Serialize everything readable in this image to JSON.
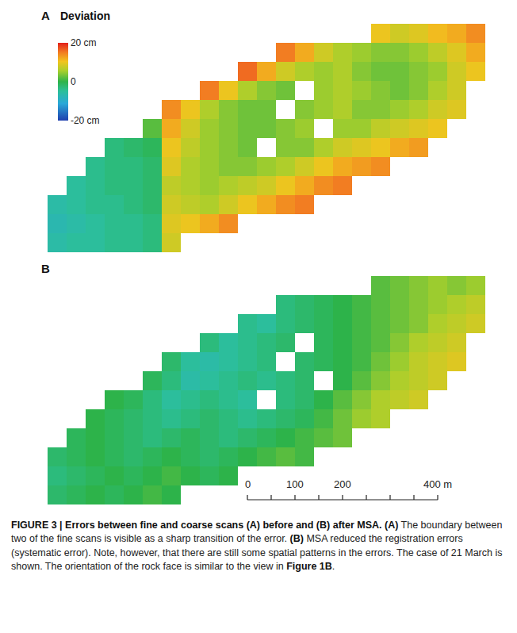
{
  "chart_data": [
    {
      "type": "heatmap",
      "panel": "A",
      "tick_labels": false,
      "x": [
        20,
        60,
        100,
        140,
        180,
        220,
        260,
        300,
        340,
        380,
        420,
        460,
        500,
        540,
        580,
        620,
        660,
        700,
        740,
        780,
        820,
        860,
        900
      ],
      "y": [
        20,
        60,
        100,
        140,
        180,
        220,
        260,
        300,
        340,
        380,
        420,
        460
      ],
      "xlim": [
        0,
        920
      ],
      "ylim": [
        0,
        480
      ],
      "colorbar": {
        "title": "Deviation",
        "range": [
          -20,
          20
        ],
        "ticks": [
          {
            "value": -20,
            "label": "-20 cm"
          },
          0,
          {
            "value": 20,
            "label": "20 cm"
          }
        ]
      },
      "values": [
        [
          -6,
          -5,
          -5,
          -4,
          -4,
          -3,
          8,
          null,
          null,
          null,
          null,
          null,
          null,
          null,
          null,
          null,
          null,
          null,
          null,
          null,
          null,
          null,
          null
        ],
        [
          -7,
          -6,
          -5,
          -4,
          -4,
          -3,
          9,
          10,
          12,
          14,
          null,
          null,
          null,
          null,
          null,
          null,
          null,
          null,
          null,
          null,
          null,
          null,
          null
        ],
        [
          -6,
          -5,
          -4,
          -4,
          -3,
          -2,
          8,
          7,
          6,
          8,
          10,
          12,
          14,
          15,
          null,
          null,
          null,
          null,
          null,
          null,
          null,
          null,
          null
        ],
        [
          null,
          -5,
          -4,
          -3,
          -3,
          -2,
          7,
          6,
          5,
          6,
          7,
          8,
          10,
          12,
          14,
          15,
          null,
          null,
          null,
          null,
          null,
          null,
          null
        ],
        [
          null,
          null,
          -4,
          -3,
          -3,
          -2,
          9,
          6,
          5,
          4,
          4,
          5,
          6,
          8,
          10,
          12,
          13,
          14,
          null,
          null,
          null,
          null,
          null
        ],
        [
          null,
          null,
          null,
          -3,
          -2,
          -1,
          10,
          7,
          5,
          4,
          3,
          null,
          4,
          4,
          6,
          8,
          9,
          10,
          12,
          13,
          null,
          null,
          null
        ],
        [
          null,
          null,
          null,
          null,
          null,
          2,
          12,
          8,
          5,
          4,
          3,
          3,
          4,
          5,
          null,
          5,
          5,
          7,
          8,
          9,
          10,
          null,
          null
        ],
        [
          null,
          null,
          null,
          null,
          null,
          null,
          14,
          10,
          6,
          4,
          3,
          3,
          null,
          4,
          5,
          6,
          4,
          4,
          5,
          6,
          8,
          9,
          null
        ],
        [
          null,
          null,
          null,
          null,
          null,
          null,
          null,
          null,
          15,
          10,
          6,
          4,
          3,
          null,
          5,
          6,
          5,
          4,
          3,
          4,
          6,
          8,
          null
        ],
        [
          null,
          null,
          null,
          null,
          null,
          null,
          null,
          null,
          null,
          null,
          16,
          12,
          8,
          6,
          5,
          6,
          4,
          3,
          3,
          4,
          5,
          8,
          10
        ],
        [
          null,
          null,
          null,
          null,
          null,
          null,
          null,
          null,
          null,
          null,
          null,
          null,
          15,
          12,
          8,
          6,
          5,
          4,
          4,
          5,
          7,
          9,
          12
        ],
        [
          null,
          null,
          null,
          null,
          null,
          null,
          null,
          null,
          null,
          null,
          null,
          null,
          null,
          null,
          null,
          null,
          null,
          10,
          8,
          9,
          11,
          12,
          14
        ]
      ]
    },
    {
      "type": "heatmap",
      "panel": "B",
      "tick_labels": false,
      "x": [
        20,
        60,
        100,
        140,
        180,
        220,
        260,
        300,
        340,
        380,
        420,
        460,
        500,
        540,
        580,
        620,
        660,
        700,
        740,
        780,
        820,
        860,
        900
      ],
      "y": [
        20,
        60,
        100,
        140,
        180,
        220,
        260,
        300,
        340,
        380,
        420,
        460
      ],
      "xlim": [
        0,
        920
      ],
      "ylim": [
        0,
        480
      ],
      "values": [
        [
          -2,
          -1,
          0,
          -1,
          0,
          1,
          0,
          null,
          null,
          null,
          null,
          null,
          null,
          null,
          null,
          null,
          null,
          null,
          null,
          null,
          null,
          null,
          null
        ],
        [
          -3,
          -2,
          -1,
          0,
          -1,
          0,
          1,
          0,
          -1,
          0,
          null,
          null,
          null,
          null,
          null,
          null,
          null,
          null,
          null,
          null,
          null,
          null,
          null
        ],
        [
          -2,
          -1,
          0,
          -1,
          -2,
          -1,
          0,
          -1,
          -2,
          -1,
          0,
          1,
          2,
          1,
          null,
          null,
          null,
          null,
          null,
          null,
          null,
          null,
          null
        ],
        [
          null,
          -1,
          0,
          -1,
          -2,
          -3,
          -2,
          -1,
          -2,
          -3,
          -2,
          -1,
          0,
          1,
          2,
          3,
          null,
          null,
          null,
          null,
          null,
          null,
          null
        ],
        [
          null,
          null,
          0,
          -1,
          -2,
          -3,
          -4,
          -3,
          -2,
          -3,
          -4,
          -3,
          -2,
          -1,
          1,
          3,
          5,
          6,
          null,
          null,
          null,
          null,
          null
        ],
        [
          null,
          null,
          null,
          0,
          -1,
          -3,
          -5,
          -4,
          -3,
          -4,
          -5,
          null,
          -3,
          -2,
          0,
          2,
          4,
          6,
          7,
          8,
          null,
          null,
          null
        ],
        [
          null,
          null,
          null,
          null,
          null,
          -1,
          -3,
          -6,
          -5,
          -4,
          -3,
          -4,
          -3,
          -2,
          null,
          0,
          2,
          4,
          6,
          7,
          8,
          null,
          null
        ],
        [
          null,
          null,
          null,
          null,
          null,
          null,
          -2,
          -5,
          -6,
          -5,
          -4,
          -3,
          null,
          -2,
          -1,
          0,
          1,
          3,
          5,
          7,
          8,
          9,
          null
        ],
        [
          null,
          null,
          null,
          null,
          null,
          null,
          null,
          null,
          -3,
          -5,
          -4,
          -3,
          -2,
          null,
          -1,
          0,
          1,
          2,
          4,
          6,
          7,
          8,
          null
        ],
        [
          null,
          null,
          null,
          null,
          null,
          null,
          null,
          null,
          null,
          null,
          -4,
          -5,
          -3,
          -2,
          -1,
          0,
          1,
          2,
          3,
          4,
          6,
          7,
          8
        ],
        [
          null,
          null,
          null,
          null,
          null,
          null,
          null,
          null,
          null,
          null,
          null,
          null,
          -3,
          -2,
          -1,
          0,
          1,
          2,
          3,
          4,
          5,
          6,
          7
        ],
        [
          null,
          null,
          null,
          null,
          null,
          null,
          null,
          null,
          null,
          null,
          null,
          null,
          null,
          null,
          null,
          null,
          null,
          2,
          3,
          4,
          5,
          4,
          5
        ]
      ]
    }
  ],
  "scale_bar": {
    "ticks": [
      0,
      50,
      100,
      150,
      200,
      250,
      300,
      350,
      400
    ],
    "labels": [
      {
        "value": 0,
        "label": "0"
      },
      {
        "value": 100,
        "label": "100"
      },
      {
        "value": 200,
        "label": "200"
      },
      {
        "value": 400,
        "label": "400 m"
      }
    ]
  },
  "caption": [
    {
      "text": "FIGURE 3 | Errors between fine and coarse scans (A) before and (B) after MSA.",
      "bold": true
    },
    {
      "text": " ",
      "bold": false
    },
    {
      "text": "(A)",
      "bold": true
    },
    {
      "text": " The boundary between two of the fine scans is visible as a sharp transition of the error. ",
      "bold": false
    },
    {
      "text": "(B)",
      "bold": true
    },
    {
      "text": " MSA reduced the registration errors (systematic error). Note, however, that there are still some spatial patterns in the errors. The case of 21 March is shown. The orientation of the rock face is similar to the view in ",
      "bold": false
    },
    {
      "text": "Figure 1B",
      "bold": true
    },
    {
      "text": ".",
      "bold": false
    }
  ]
}
